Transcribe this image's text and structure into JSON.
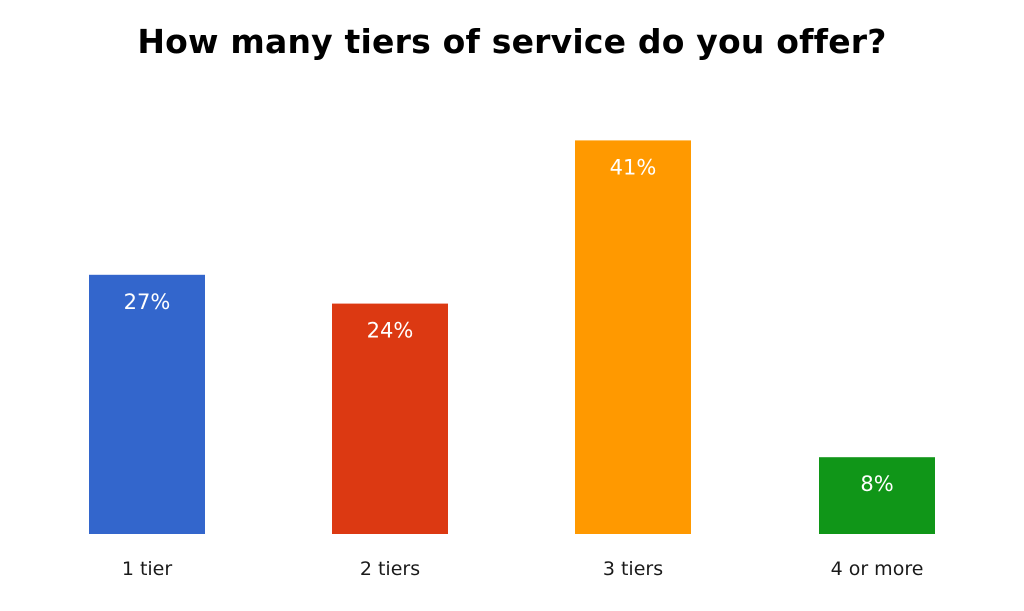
{
  "chart_data": {
    "type": "bar",
    "title": "How many tiers of service do you offer?",
    "xlabel": "",
    "ylabel": "",
    "ylim": [
      0,
      45
    ],
    "grid": false,
    "legend": "none",
    "categories": [
      "1 tier",
      "2 tiers",
      "3 tiers",
      "4 or more"
    ],
    "values": [
      27,
      24,
      41,
      8
    ],
    "value_labels": [
      "27%",
      "24%",
      "41%",
      "8%"
    ],
    "colors": [
      "#3366cc",
      "#dc3912",
      "#ff9900",
      "#109618"
    ]
  }
}
